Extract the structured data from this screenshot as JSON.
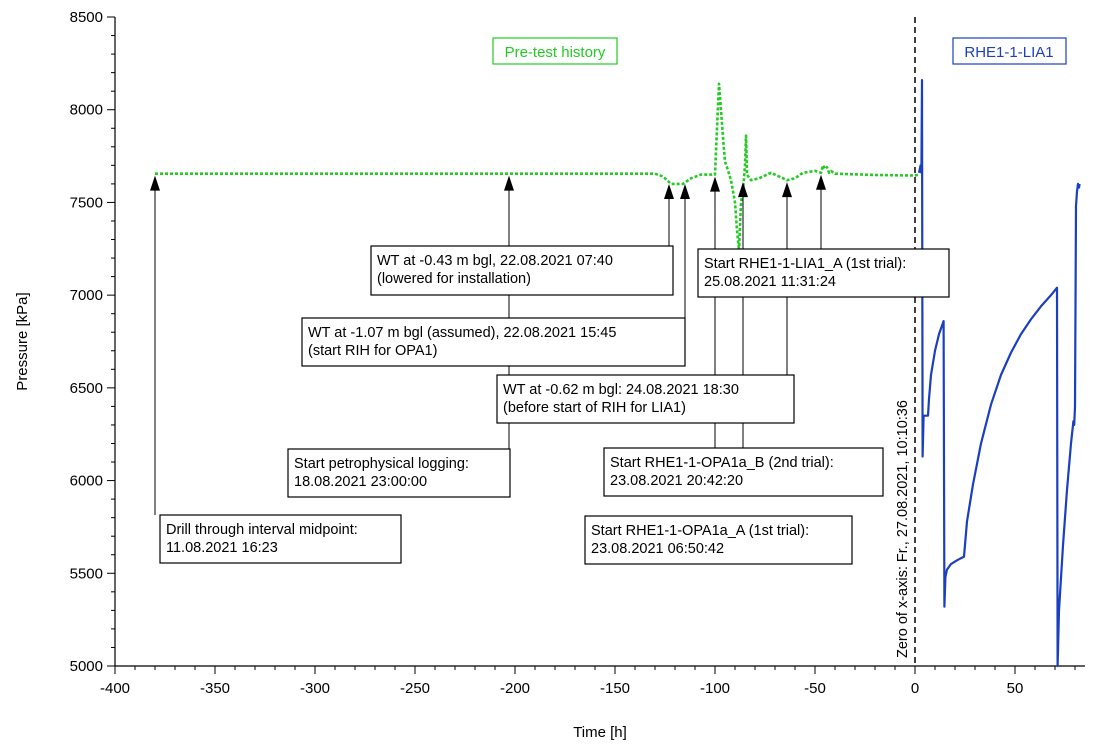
{
  "chart_data": {
    "type": "line",
    "xlabel": "Time [h]",
    "ylabel": "Pressure [kPa]",
    "xlim": [
      -400,
      85
    ],
    "ylim": [
      5000,
      8500
    ],
    "x_ticks": [
      -400,
      -350,
      -300,
      -250,
      -200,
      -150,
      -100,
      -50,
      0,
      50
    ],
    "y_ticks": [
      5000,
      5500,
      6000,
      6500,
      7000,
      7500,
      8000,
      8500
    ],
    "grid": false,
    "colors": {
      "pretest": "#22cc22",
      "test": "#1a3fbf",
      "arrow": "#000000"
    },
    "series": [
      {
        "name": "Pre-test history",
        "style": "dotted",
        "color": "#22cc22",
        "points": [
          [
            -380,
            7655
          ],
          [
            -200,
            7655
          ],
          [
            -130,
            7655
          ],
          [
            -126,
            7640
          ],
          [
            -122,
            7600
          ],
          [
            -116,
            7600
          ],
          [
            -112,
            7630
          ],
          [
            -107,
            7650
          ],
          [
            -100,
            7650
          ],
          [
            -99,
            7900
          ],
          [
            -98,
            8140
          ],
          [
            -97,
            8000
          ],
          [
            -96,
            7850
          ],
          [
            -95,
            7720
          ],
          [
            -94,
            7690
          ],
          [
            -92,
            7620
          ],
          [
            -90,
            7500
          ],
          [
            -89,
            7350
          ],
          [
            -88,
            7240
          ],
          [
            -87,
            7500
          ],
          [
            -86,
            7560
          ],
          [
            -85,
            7700
          ],
          [
            -84.5,
            7860
          ],
          [
            -84,
            7650
          ],
          [
            -82,
            7620
          ],
          [
            -78,
            7630
          ],
          [
            -72,
            7660
          ],
          [
            -68,
            7640
          ],
          [
            -64,
            7620
          ],
          [
            -60,
            7630
          ],
          [
            -56,
            7660
          ],
          [
            -50,
            7670
          ],
          [
            -47,
            7660
          ],
          [
            -46,
            7700
          ],
          [
            -45,
            7680
          ],
          [
            -44,
            7690
          ],
          [
            -43,
            7660
          ],
          [
            -42,
            7670
          ],
          [
            -40,
            7655
          ],
          [
            -20,
            7648
          ],
          [
            0,
            7645
          ],
          [
            2,
            7650
          ]
        ]
      },
      {
        "name": "RHE1-1-LIA1",
        "style": "solid",
        "color": "#1a3fbf",
        "points": [
          [
            2,
            7660
          ],
          [
            2.8,
            7700
          ],
          [
            3.2,
            7660
          ],
          [
            3.5,
            8160
          ],
          [
            3.8,
            6130
          ],
          [
            4.3,
            6350
          ],
          [
            6.5,
            6350
          ],
          [
            7,
            6440
          ],
          [
            8,
            6570
          ],
          [
            10,
            6700
          ],
          [
            12,
            6790
          ],
          [
            14.3,
            6860
          ],
          [
            14.7,
            5320
          ],
          [
            15.2,
            5480
          ],
          [
            16,
            5520
          ],
          [
            18,
            5550
          ],
          [
            21,
            5570
          ],
          [
            24.5,
            5590
          ],
          [
            26,
            5780
          ],
          [
            29,
            5980
          ],
          [
            33,
            6200
          ],
          [
            38,
            6410
          ],
          [
            43,
            6570
          ],
          [
            48,
            6690
          ],
          [
            53,
            6790
          ],
          [
            58,
            6870
          ],
          [
            63,
            6940
          ],
          [
            68,
            7000
          ],
          [
            71,
            7040
          ],
          [
            71.3,
            5000
          ],
          [
            72,
            5300
          ],
          [
            74,
            5650
          ],
          [
            76,
            5950
          ],
          [
            78,
            6200
          ],
          [
            79.2,
            6320
          ],
          [
            79.6,
            6300
          ],
          [
            80,
            6400
          ],
          [
            80.5,
            7480
          ],
          [
            81,
            7560
          ],
          [
            81.5,
            7600
          ],
          [
            82,
            7580
          ],
          [
            82.3,
            7600
          ]
        ]
      }
    ],
    "vertical_line": {
      "x": 0,
      "label": "Zero of x-axis: Fr., 27.08.2021, 10:10:36"
    },
    "legend": {
      "pretest": "Pre-test history",
      "test": "RHE1-1-LIA1"
    },
    "annotations": [
      {
        "x": -380,
        "arrow_top": 7655,
        "line_bottom": 5830,
        "lines": [
          "Drill through interval midpoint:",
          "11.08.2021 16:23"
        ]
      },
      {
        "x": -203,
        "arrow_top": 7655,
        "line_bottom": 6190,
        "lines": [
          "Start petrophysical logging:",
          "18.08.2021  23:00:00"
        ]
      },
      {
        "x": -123,
        "arrow_top": 7610,
        "line_bottom": 7250,
        "lines": [
          "WT at -0.43 m bgl, 22.08.2021 07:40",
          "(lowered for installation)"
        ]
      },
      {
        "x": -115,
        "arrow_top": 7610,
        "line_bottom": 6860,
        "lines": [
          "WT at -1.07 m bgl (assumed), 22.08.2021 15:45",
          "(start RIH for OPA1)"
        ]
      },
      {
        "x": -100,
        "arrow_top": 7650,
        "line_bottom": 6190,
        "lines": [
          "Start RHE1-1-OPA1a_A (1st trial):",
          "23.08.2021 06:50:42"
        ]
      },
      {
        "x": -86,
        "arrow_top": 7620,
        "line_bottom": 6190,
        "lines": [
          "Start RHE1-1-OPA1a_B (2nd trial):",
          "23.08.2021 20:42:20"
        ]
      },
      {
        "x": -64,
        "arrow_top": 7620,
        "line_bottom": 6620,
        "lines": [
          "WT at -0.62 m bgl: 24.08.2021 18:30",
          "(before start of RIH for LIA1)"
        ]
      },
      {
        "x": -47,
        "arrow_top": 7660,
        "line_bottom": 7250,
        "lines": [
          "Start RHE1-1-LIA1_A (1st trial):",
          "25.08.2021 11:31:24"
        ]
      }
    ]
  }
}
